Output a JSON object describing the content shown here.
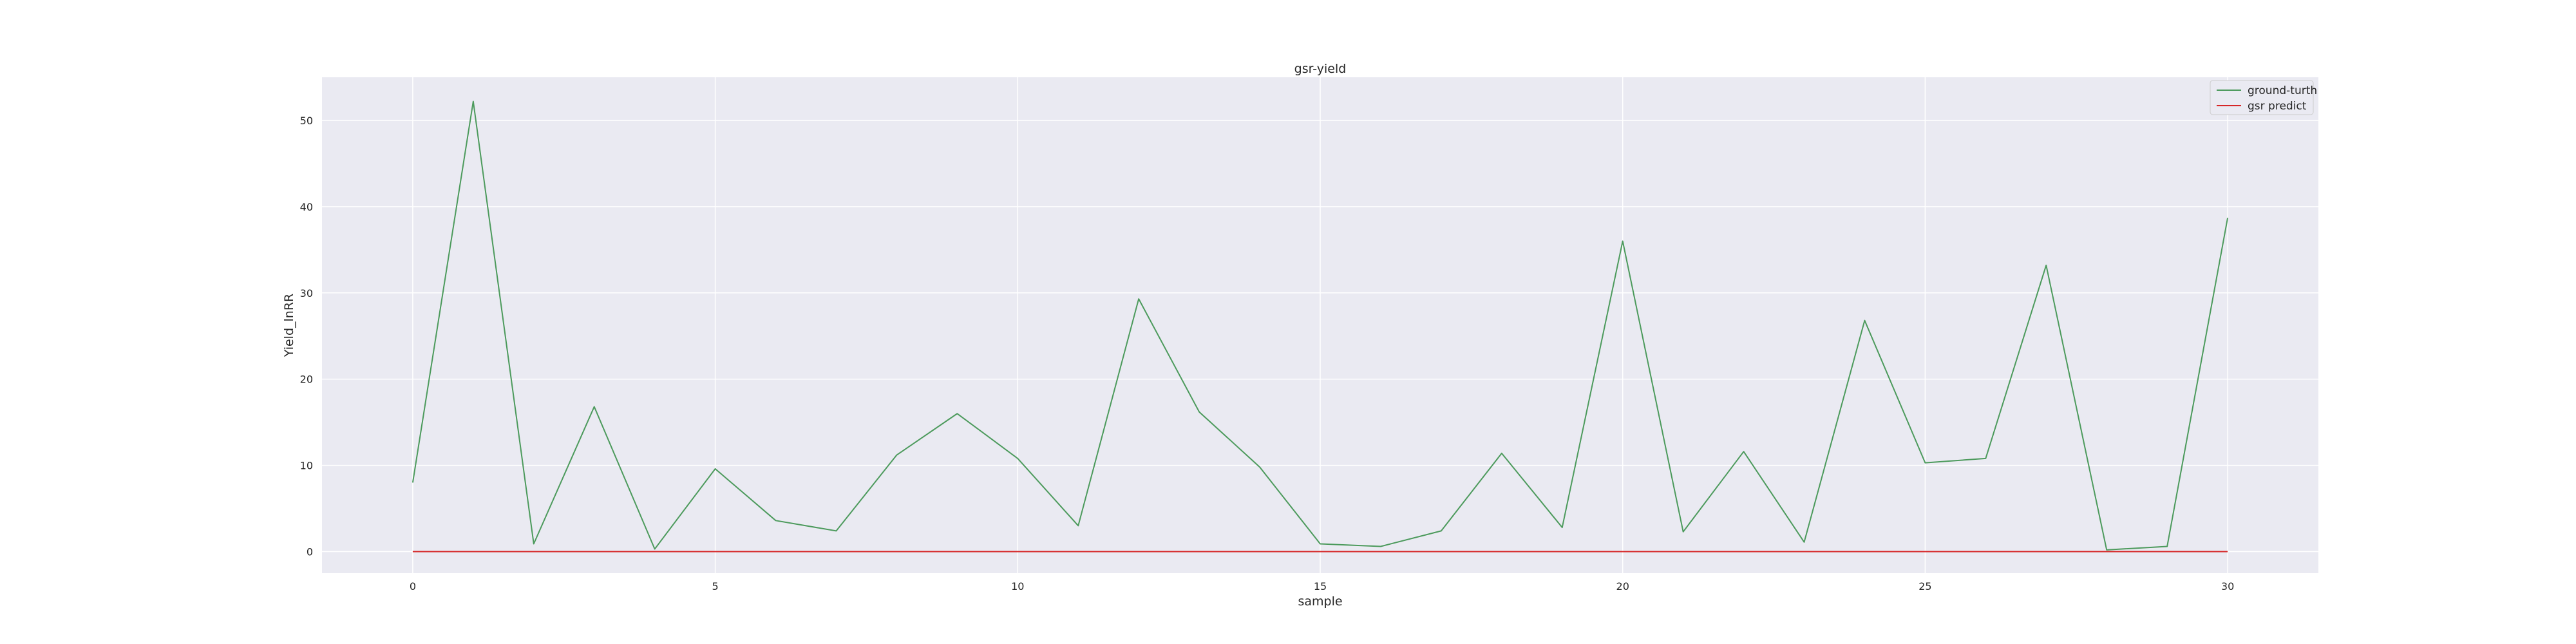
{
  "chart_data": {
    "type": "line",
    "title": "gsr-yield",
    "xlabel": "sample",
    "ylabel": "Yield_lnRR",
    "xlim": [
      -1.5,
      31.5
    ],
    "ylim": [
      -2.5,
      55
    ],
    "xticks": [
      0,
      5,
      10,
      15,
      20,
      25,
      30
    ],
    "yticks": [
      0,
      10,
      20,
      30,
      40,
      50
    ],
    "grid": true,
    "legend_position": "top-right",
    "x": [
      0,
      1,
      2,
      3,
      4,
      5,
      6,
      7,
      8,
      9,
      10,
      11,
      12,
      13,
      14,
      15,
      16,
      17,
      18,
      19,
      20,
      21,
      22,
      23,
      24,
      25,
      26,
      27,
      28,
      29,
      30
    ],
    "series": [
      {
        "name": "ground-turth",
        "color": "#4c9a5c",
        "values": [
          8,
          52.2,
          0.9,
          16.8,
          0.3,
          9.6,
          3.6,
          2.4,
          11.2,
          16,
          10.8,
          3,
          29.3,
          16.2,
          9.8,
          0.9,
          0.6,
          2.4,
          11.4,
          2.8,
          36,
          2.3,
          11.6,
          1.1,
          26.8,
          10.3,
          10.8,
          33.2,
          0.2,
          0.6,
          38.7
        ]
      },
      {
        "name": "gsr predict",
        "color": "#d62728",
        "values": [
          0,
          0,
          0,
          0,
          0,
          0,
          0,
          0,
          0,
          0,
          0,
          0,
          0,
          0,
          0,
          0,
          0,
          0,
          0,
          0,
          0,
          0,
          0,
          0,
          0,
          0,
          0,
          0,
          0,
          0,
          0
        ]
      }
    ]
  },
  "colors": {
    "plot_background": "#eaeaf2",
    "grid": "#ffffff"
  }
}
